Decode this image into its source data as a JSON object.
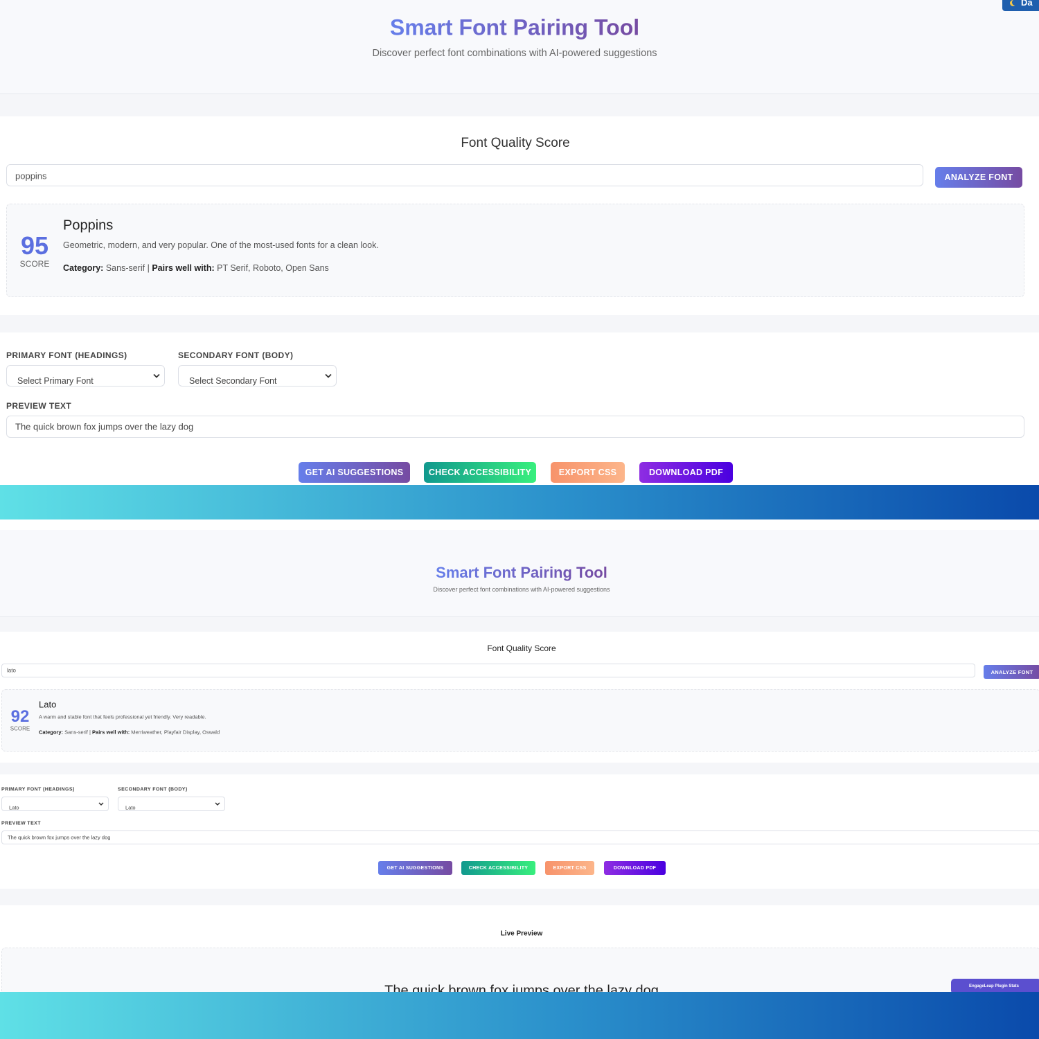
{
  "top": {
    "corner_button": "Da",
    "header": {
      "title": "Smart Font Pairing Tool",
      "subtitle": "Discover perfect font combinations with AI-powered suggestions"
    },
    "quality": {
      "title": "Font Quality Score",
      "input": "poppins",
      "button": "ANALYZE FONT",
      "result": {
        "score": "95",
        "score_label": "SCORE",
        "name": "Poppins",
        "description": "Geometric, modern, and very popular. One of the most-used fonts for a clean look.",
        "category_label": "Category:",
        "category": "Sans-serif",
        "separator": "|",
        "pairs_label": "Pairs well with:",
        "pairs": "PT Serif, Roboto, Open Sans"
      }
    },
    "controls": {
      "primary_label": "PRIMARY FONT (HEADINGS)",
      "primary_value": "Select Primary Font",
      "secondary_label": "SECONDARY FONT (BODY)",
      "secondary_value": "Select Secondary Font",
      "preview_label": "PREVIEW TEXT",
      "preview_value": "The quick brown fox jumps over the lazy dog",
      "buttons": [
        "GET AI SUGGESTIONS",
        "CHECK ACCESSIBILITY",
        "EXPORT CSS",
        "DOWNLOAD PDF"
      ]
    }
  },
  "bottom": {
    "header": {
      "title": "Smart Font Pairing Tool",
      "subtitle": "Discover perfect font combinations with AI-powered suggestions"
    },
    "quality": {
      "title": "Font Quality Score",
      "input": "lato",
      "button": "ANALYZE FONT",
      "result": {
        "score": "92",
        "score_label": "SCORE",
        "name": "Lato",
        "description": "A warm and stable font that feels professional yet friendly. Very readable.",
        "category_label": "Category:",
        "category": "Sans-serif",
        "separator": "|",
        "pairs_label": "Pairs well with:",
        "pairs": "Merriweather, Playfair Display, Oswald"
      }
    },
    "controls": {
      "primary_label": "PRIMARY FONT (HEADINGS)",
      "primary_value": "Lato",
      "secondary_label": "SECONDARY FONT (BODY)",
      "secondary_value": "Lato",
      "preview_label": "PREVIEW TEXT",
      "preview_value": "The quick brown fox jumps over the lazy dog",
      "buttons": [
        "GET AI SUGGESTIONS",
        "CHECK ACCESSIBILITY",
        "EXPORT CSS",
        "DOWNLOAD PDF"
      ]
    },
    "live_preview": {
      "title": "Live Preview",
      "text": "The quick brown fox jumps over the lazy dog"
    },
    "badge": "EngageLeap Plugin Stats"
  }
}
